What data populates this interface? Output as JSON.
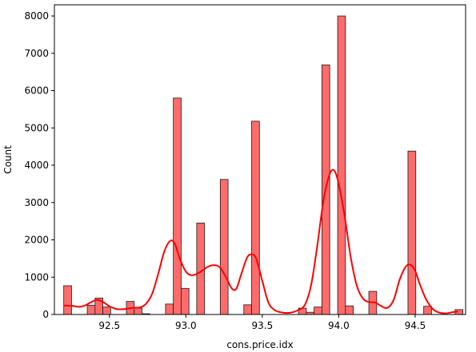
{
  "chart_data": {
    "type": "bar",
    "xlabel": "cons.price.idx",
    "ylabel": "Count",
    "xlim": [
      92.14,
      94.83
    ],
    "ylim": [
      0,
      8300
    ],
    "xticks": [
      92.5,
      93.0,
      93.5,
      94.0,
      94.5
    ],
    "xtick_labels": [
      "92.5",
      "93.0",
      "93.5",
      "94.0",
      "94.5"
    ],
    "yticks": [
      0,
      1000,
      2000,
      3000,
      4000,
      5000,
      6000,
      7000,
      8000
    ],
    "ytick_labels": [
      "0",
      "1000",
      "2000",
      "3000",
      "4000",
      "5000",
      "6000",
      "7000",
      "8000"
    ],
    "bin_width": 0.0512,
    "bars": [
      {
        "x0": 92.201,
        "height": 770
      },
      {
        "x0": 92.355,
        "height": 250
      },
      {
        "x0": 92.406,
        "height": 440
      },
      {
        "x0": 92.457,
        "height": 200
      },
      {
        "x0": 92.611,
        "height": 350
      },
      {
        "x0": 92.662,
        "height": 170
      },
      {
        "x0": 92.713,
        "height": 20
      },
      {
        "x0": 92.867,
        "height": 280
      },
      {
        "x0": 92.918,
        "height": 5800
      },
      {
        "x0": 92.969,
        "height": 700
      },
      {
        "x0": 93.071,
        "height": 2450
      },
      {
        "x0": 93.225,
        "height": 3620
      },
      {
        "x0": 93.379,
        "height": 260
      },
      {
        "x0": 93.43,
        "height": 5180
      },
      {
        "x0": 93.737,
        "height": 170
      },
      {
        "x0": 93.788,
        "height": 60
      },
      {
        "x0": 93.839,
        "height": 200
      },
      {
        "x0": 93.89,
        "height": 6690
      },
      {
        "x0": 93.993,
        "height": 8000
      },
      {
        "x0": 94.044,
        "height": 230
      },
      {
        "x0": 94.197,
        "height": 620
      },
      {
        "x0": 94.453,
        "height": 4380
      },
      {
        "x0": 94.556,
        "height": 220
      },
      {
        "x0": 94.761,
        "height": 130
      }
    ],
    "kde": [
      [
        92.2,
        240
      ],
      [
        92.26,
        230
      ],
      [
        92.3,
        205
      ],
      [
        92.34,
        240
      ],
      [
        92.38,
        330
      ],
      [
        92.42,
        390
      ],
      [
        92.46,
        330
      ],
      [
        92.5,
        220
      ],
      [
        92.55,
        145
      ],
      [
        92.6,
        145
      ],
      [
        92.65,
        180
      ],
      [
        92.7,
        190
      ],
      [
        92.74,
        290
      ],
      [
        92.78,
        560
      ],
      [
        92.82,
        1100
      ],
      [
        92.86,
        1700
      ],
      [
        92.9,
        1980
      ],
      [
        92.93,
        1870
      ],
      [
        92.96,
        1500
      ],
      [
        93.0,
        1150
      ],
      [
        93.04,
        1050
      ],
      [
        93.09,
        1130
      ],
      [
        93.14,
        1270
      ],
      [
        93.18,
        1320
      ],
      [
        93.22,
        1270
      ],
      [
        93.26,
        1020
      ],
      [
        93.3,
        700
      ],
      [
        93.33,
        690
      ],
      [
        93.36,
        1050
      ],
      [
        93.4,
        1520
      ],
      [
        93.43,
        1610
      ],
      [
        93.46,
        1500
      ],
      [
        93.5,
        900
      ],
      [
        93.54,
        320
      ],
      [
        93.58,
        120
      ],
      [
        93.62,
        60
      ],
      [
        93.66,
        40
      ],
      [
        93.7,
        60
      ],
      [
        93.74,
        130
      ],
      [
        93.78,
        270
      ],
      [
        93.82,
        800
      ],
      [
        93.86,
        1850
      ],
      [
        93.9,
        3050
      ],
      [
        93.94,
        3750
      ],
      [
        93.97,
        3860
      ],
      [
        94.0,
        3500
      ],
      [
        94.04,
        2600
      ],
      [
        94.08,
        1500
      ],
      [
        94.12,
        750
      ],
      [
        94.16,
        420
      ],
      [
        94.2,
        330
      ],
      [
        94.24,
        320
      ],
      [
        94.28,
        220
      ],
      [
        94.32,
        180
      ],
      [
        94.36,
        400
      ],
      [
        94.4,
        950
      ],
      [
        94.44,
        1290
      ],
      [
        94.47,
        1330
      ],
      [
        94.5,
        1170
      ],
      [
        94.53,
        820
      ],
      [
        94.57,
        420
      ],
      [
        94.61,
        170
      ],
      [
        94.65,
        60
      ],
      [
        94.7,
        30
      ],
      [
        94.74,
        60
      ],
      [
        94.78,
        80
      ]
    ],
    "bar_color": "#ff6b6b",
    "bar_edge_color": "#1a1a1a",
    "kde_color": "#ff0000",
    "grid": false
  }
}
